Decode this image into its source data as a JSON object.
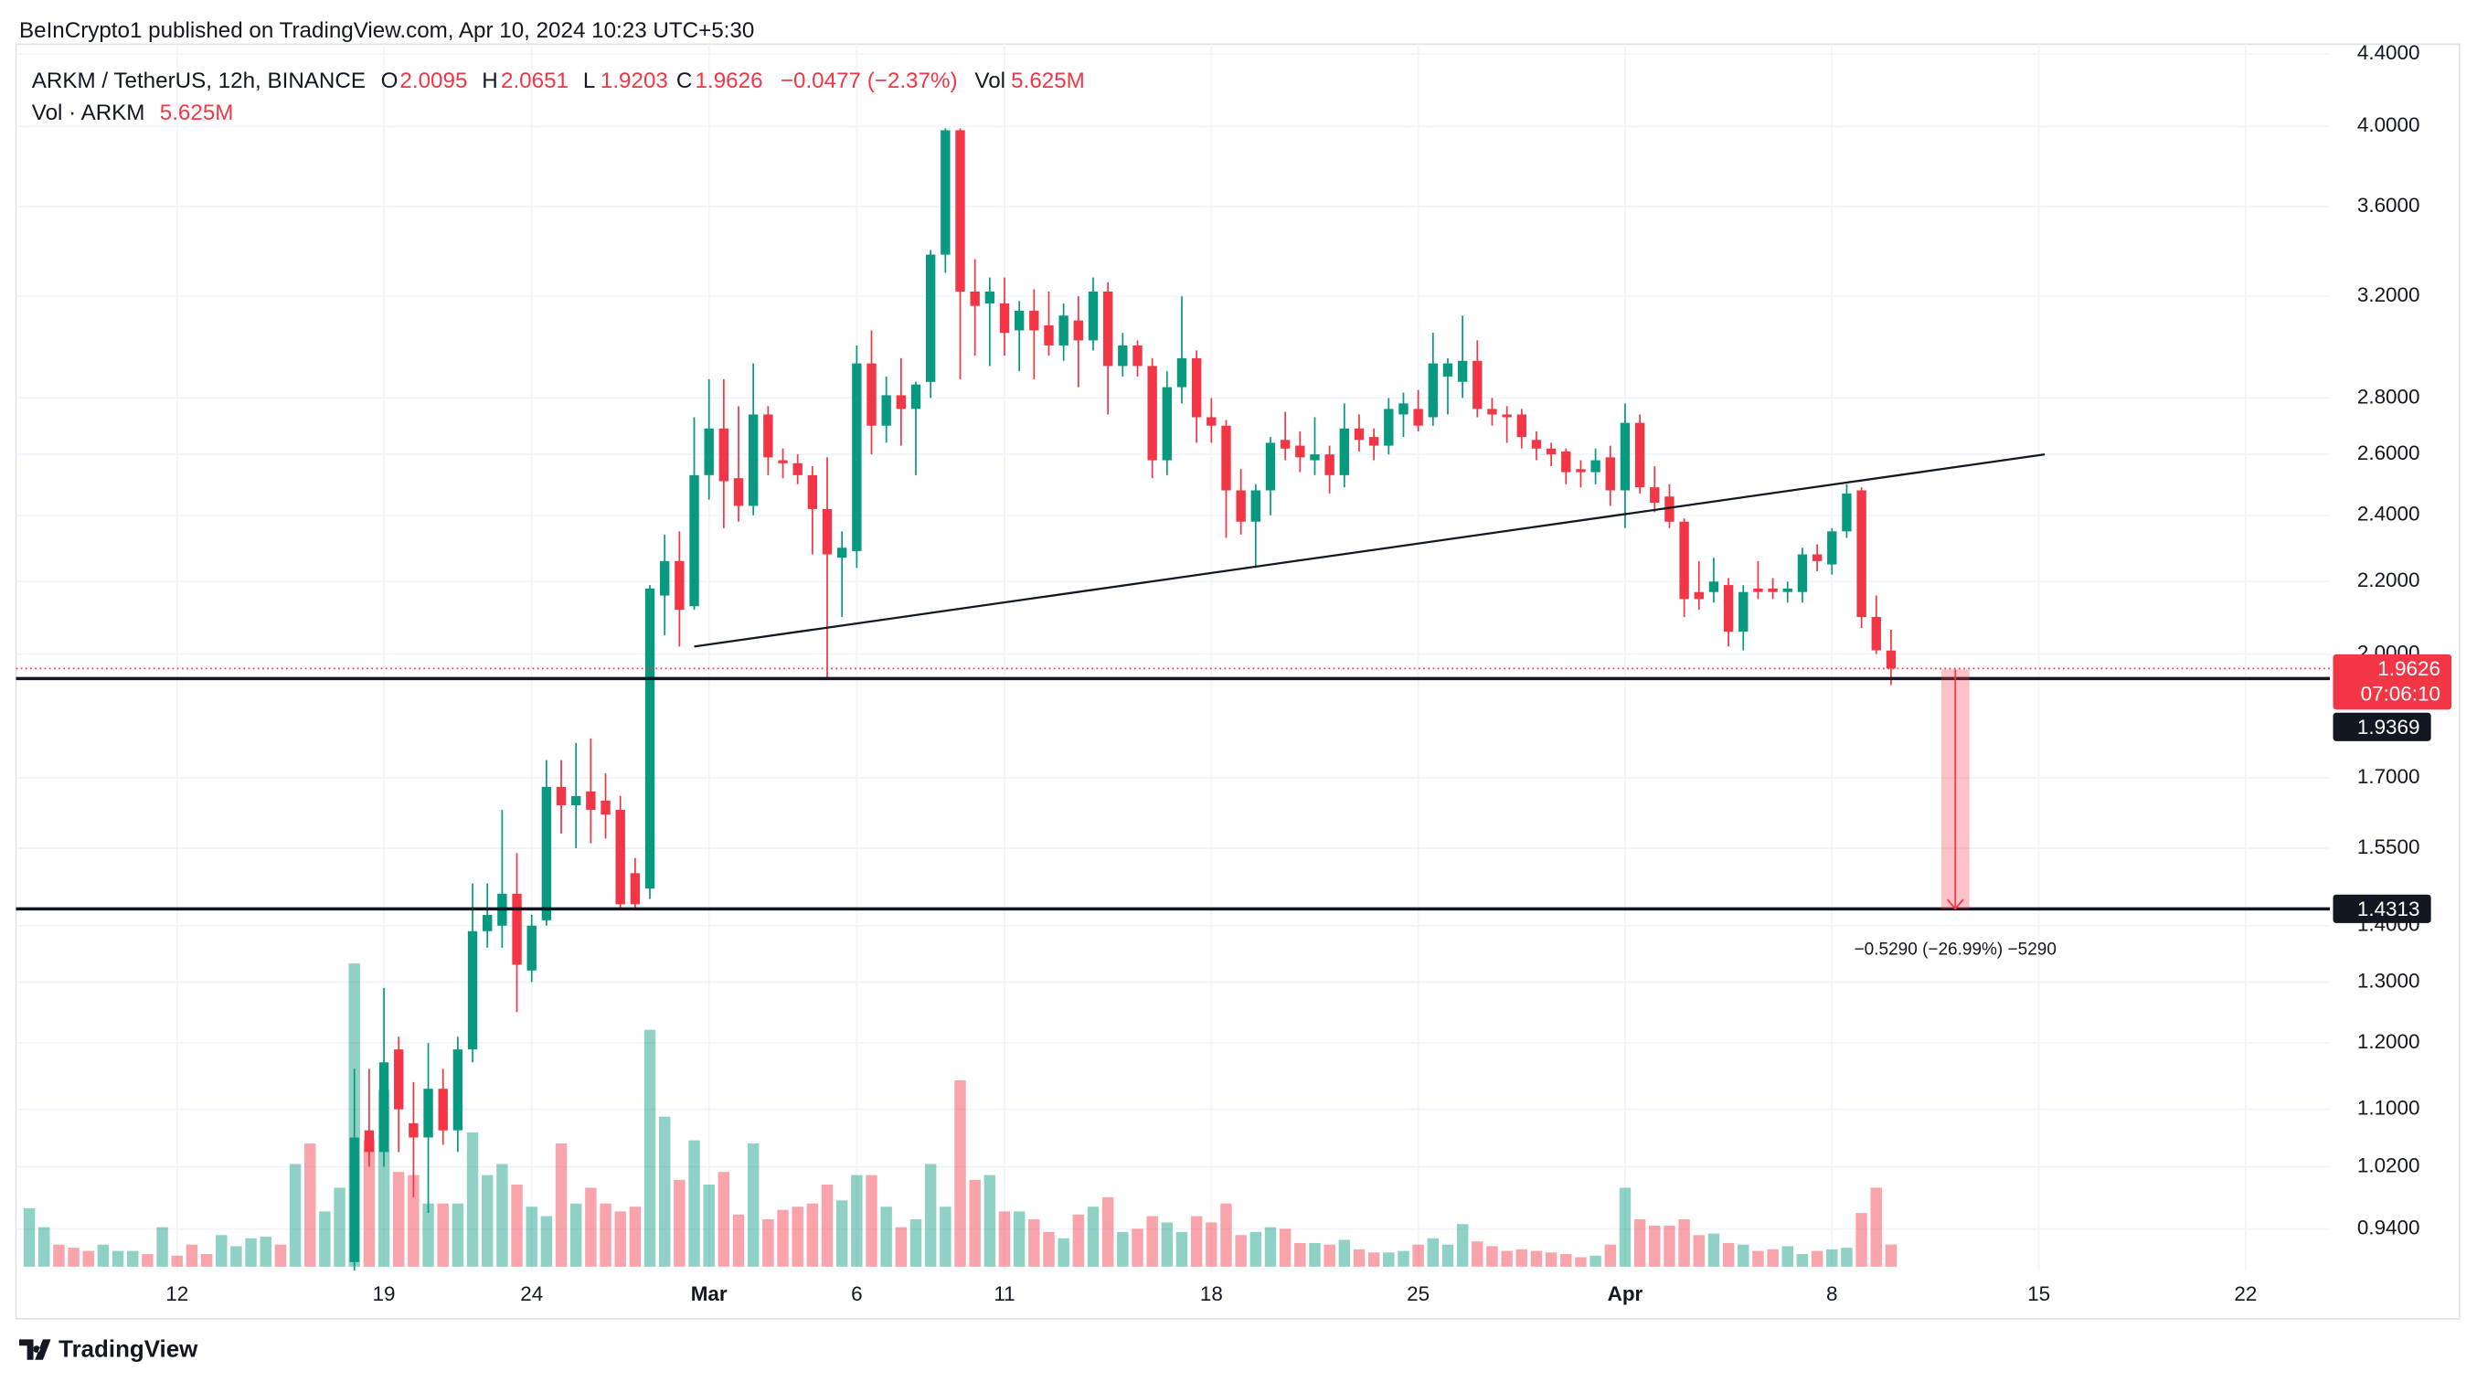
{
  "chart_data": {
    "type": "candlestick",
    "header": "BeInCrypto1 published on TradingView.com, Apr 10, 2024 10:23 UTC+5:30",
    "legend": {
      "symbol": "ARKM / TetherUS, 12h, BINANCE",
      "o": "O",
      "h": "H",
      "l": "L",
      "c": "C",
      "change": "−0.0477 (−2.37%)",
      "vol": "Vol",
      "volume": "5.625M",
      "indicator": "Vol · ARKM"
    },
    "footer": "TradingView",
    "countdown": "07:06:10",
    "log_scale": true,
    "grid": true,
    "up_color": "#089981",
    "down_color": "#f23645",
    "xlim": [
      -0.9,
      155.7
    ],
    "xticks": [
      {
        "value": 10,
        "label": "12"
      },
      {
        "value": 24,
        "label": "19"
      },
      {
        "value": 34,
        "label": "24"
      },
      {
        "value": 46,
        "label": "Mar"
      },
      {
        "value": 56,
        "label": "6"
      },
      {
        "value": 66,
        "label": "11"
      },
      {
        "value": 80,
        "label": "18"
      },
      {
        "value": 94,
        "label": "25"
      },
      {
        "value": 108,
        "label": "Apr"
      },
      {
        "value": 122,
        "label": "8"
      },
      {
        "value": 136,
        "label": "15"
      },
      {
        "value": 150,
        "label": "22"
      }
    ],
    "ylim": [
      0.889,
      4.456
    ],
    "yticks": [
      {
        "value": 4.4,
        "label": "4.4000"
      },
      {
        "value": 4.0,
        "label": "4.0000"
      },
      {
        "value": 3.6,
        "label": "3.6000"
      },
      {
        "value": 3.2,
        "label": "3.2000"
      },
      {
        "value": 2.8,
        "label": "2.8000"
      },
      {
        "value": 2.6,
        "label": "2.6000"
      },
      {
        "value": 2.4,
        "label": "2.4000"
      },
      {
        "value": 2.2,
        "label": "2.2000"
      },
      {
        "value": 2.0,
        "label": "2.0000"
      },
      {
        "value": 1.7,
        "label": "1.7000"
      },
      {
        "value": 1.55,
        "label": "1.5500"
      },
      {
        "value": 1.4,
        "label": "1.4000"
      },
      {
        "value": 1.3,
        "label": "1.3000"
      },
      {
        "value": 1.2,
        "label": "1.2000"
      },
      {
        "value": 1.1,
        "label": "1.1000"
      },
      {
        "value": 1.02,
        "label": "1.0200"
      },
      {
        "value": 0.94,
        "label": "0.9400"
      }
    ],
    "open": [
      null,
      null,
      null,
      null,
      null,
      null,
      null,
      null,
      null,
      null,
      null,
      null,
      null,
      null,
      null,
      null,
      null,
      null,
      null,
      null,
      null,
      null,
      0.9,
      1.07,
      1.04,
      1.19,
      1.08,
      1.06,
      1.13,
      1.07,
      1.19,
      1.39,
      1.4,
      1.46,
      1.32,
      1.41,
      1.68,
      1.64,
      1.67,
      1.65,
      1.63,
      1.5,
      1.47,
      2.16,
      2.26,
      2.13,
      2.53,
      2.69,
      2.52,
      2.43,
      2.74,
      2.58,
      2.57,
      2.53,
      2.42,
      2.27,
      2.29,
      2.93,
      2.7,
      2.81,
      2.76,
      2.86,
      3.38,
      3.98,
      3.22,
      3.17,
      3.17,
      3.06,
      3.14,
      3.08,
      3.0,
      3.1,
      3.02,
      3.22,
      2.92,
      3.0,
      2.92,
      2.58,
      2.84,
      2.95,
      2.73,
      2.7,
      2.48,
      2.38,
      2.48,
      2.65,
      2.63,
      2.58,
      2.6,
      2.53,
      2.69,
      2.66,
      2.63,
      2.74,
      2.76,
      2.73,
      2.88,
      2.86,
      2.94,
      2.76,
      2.74,
      2.74,
      2.65,
      2.62,
      2.61,
      2.55,
      2.54,
      2.59,
      2.48,
      2.71,
      2.49,
      2.46,
      2.38,
      2.17,
      2.17,
      2.19,
      2.06,
      2.18,
      2.18,
      2.17,
      2.17,
      2.28,
      2.25,
      2.35,
      2.48,
      2.1,
      2.0095
    ],
    "high": [
      null,
      null,
      null,
      null,
      null,
      null,
      null,
      null,
      null,
      null,
      null,
      null,
      null,
      null,
      null,
      null,
      null,
      null,
      null,
      null,
      null,
      null,
      1.16,
      1.16,
      1.29,
      1.21,
      1.14,
      1.2,
      1.16,
      1.21,
      1.48,
      1.48,
      1.63,
      1.54,
      1.42,
      1.74,
      1.74,
      1.78,
      1.79,
      1.71,
      1.66,
      1.53,
      2.19,
      2.34,
      2.35,
      2.73,
      2.87,
      2.87,
      2.77,
      2.93,
      2.77,
      2.62,
      2.6,
      2.56,
      2.59,
      2.35,
      3.0,
      3.06,
      2.88,
      2.95,
      2.86,
      3.4,
      3.99,
      3.99,
      3.36,
      3.28,
      3.28,
      3.18,
      3.23,
      3.22,
      3.17,
      3.2,
      3.28,
      3.26,
      3.05,
      3.02,
      2.95,
      2.9,
      3.2,
      2.98,
      2.8,
      2.72,
      2.55,
      2.5,
      2.66,
      2.75,
      2.68,
      2.73,
      2.63,
      2.78,
      2.74,
      2.69,
      2.8,
      2.82,
      2.83,
      3.05,
      2.95,
      3.12,
      3.02,
      2.8,
      2.77,
      2.76,
      2.68,
      2.64,
      2.62,
      2.58,
      2.62,
      2.63,
      2.78,
      2.74,
      2.56,
      2.5,
      2.39,
      2.26,
      2.27,
      2.21,
      2.19,
      2.26,
      2.21,
      2.2,
      2.3,
      2.31,
      2.36,
      2.5,
      2.49,
      2.16,
      2.0651
    ],
    "low": [
      null,
      null,
      null,
      null,
      null,
      null,
      null,
      null,
      null,
      null,
      null,
      null,
      null,
      null,
      null,
      null,
      null,
      null,
      null,
      null,
      null,
      null,
      0.89,
      1.02,
      1.02,
      1.04,
      0.98,
      0.96,
      1.05,
      1.04,
      1.17,
      1.36,
      1.36,
      1.25,
      1.3,
      1.4,
      1.58,
      1.55,
      1.56,
      1.57,
      1.43,
      1.43,
      1.45,
      2.05,
      2.02,
      2.12,
      2.45,
      2.36,
      2.38,
      2.4,
      2.53,
      2.52,
      2.5,
      2.28,
      1.935,
      2.1,
      2.24,
      2.6,
      2.64,
      2.63,
      2.53,
      2.8,
      3.3,
      2.87,
      2.96,
      2.92,
      2.96,
      2.9,
      2.87,
      2.96,
      2.94,
      2.84,
      2.98,
      2.74,
      2.88,
      2.88,
      2.52,
      2.53,
      2.78,
      2.64,
      2.64,
      2.33,
      2.34,
      2.24,
      2.4,
      2.58,
      2.54,
      2.53,
      2.47,
      2.49,
      2.61,
      2.58,
      2.6,
      2.66,
      2.68,
      2.7,
      2.74,
      2.8,
      2.73,
      2.7,
      2.64,
      2.62,
      2.58,
      2.56,
      2.5,
      2.49,
      2.5,
      2.43,
      2.36,
      2.47,
      2.41,
      2.36,
      2.1,
      2.12,
      2.14,
      2.02,
      2.01,
      2.15,
      2.15,
      2.14,
      2.14,
      2.23,
      2.22,
      2.33,
      2.07,
      2.0,
      1.9203
    ],
    "close": [
      null,
      null,
      null,
      null,
      null,
      null,
      null,
      null,
      null,
      null,
      null,
      null,
      null,
      null,
      null,
      null,
      null,
      null,
      null,
      null,
      null,
      null,
      1.06,
      1.04,
      1.17,
      1.1,
      1.06,
      1.13,
      1.07,
      1.19,
      1.39,
      1.42,
      1.46,
      1.33,
      1.4,
      1.68,
      1.64,
      1.66,
      1.63,
      1.62,
      1.44,
      1.44,
      2.18,
      2.26,
      2.12,
      2.53,
      2.69,
      2.51,
      2.43,
      2.74,
      2.59,
      2.57,
      2.53,
      2.42,
      2.28,
      2.3,
      2.93,
      2.7,
      2.81,
      2.76,
      2.85,
      3.38,
      3.98,
      3.22,
      3.16,
      3.22,
      3.05,
      3.14,
      3.06,
      3.0,
      3.12,
      3.02,
      3.22,
      2.92,
      3.0,
      2.92,
      2.58,
      2.84,
      2.95,
      2.73,
      2.7,
      2.48,
      2.38,
      2.48,
      2.64,
      2.62,
      2.59,
      2.6,
      2.53,
      2.69,
      2.65,
      2.63,
      2.76,
      2.78,
      2.7,
      2.93,
      2.93,
      2.94,
      2.76,
      2.74,
      2.73,
      2.66,
      2.62,
      2.6,
      2.54,
      2.54,
      2.58,
      2.48,
      2.71,
      2.49,
      2.44,
      2.38,
      2.15,
      2.15,
      2.2,
      2.06,
      2.17,
      2.17,
      2.17,
      2.18,
      2.28,
      2.26,
      2.35,
      2.47,
      2.1,
      2.01,
      1.9626
    ],
    "volume": [
      14.8,
      10,
      5.6,
      4.8,
      4,
      5.6,
      4,
      4,
      3.2,
      10,
      2.8,
      5.6,
      3.2,
      8,
      5.2,
      7.2,
      7.6,
      5.6,
      26,
      31.2,
      14,
      20,
      76.8,
      32,
      44.8,
      24,
      23.2,
      16,
      16,
      16,
      34,
      23.2,
      26,
      20.8,
      15.2,
      12.8,
      31.2,
      16,
      20,
      16,
      14,
      15.2,
      60,
      38,
      22,
      32,
      20.8,
      24,
      13.2,
      31.2,
      12,
      14.4,
      15.2,
      16,
      20.8,
      16.8,
      23.2,
      23.2,
      15.2,
      10,
      12,
      26,
      15.2,
      47.2,
      22,
      23.2,
      14,
      14,
      12,
      8.8,
      7.2,
      13.2,
      15.2,
      17.6,
      8.8,
      9.6,
      12.8,
      11.2,
      8.8,
      12.8,
      11.2,
      16,
      8,
      8.8,
      10,
      9.6,
      6,
      6,
      5.6,
      6.8,
      4.4,
      3.6,
      3.6,
      4,
      5.6,
      7.2,
      5.6,
      10.8,
      6.4,
      5.2,
      4,
      4.4,
      4,
      3.6,
      3.2,
      2.4,
      2.8,
      5.6,
      20,
      12,
      10.4,
      10.4,
      12,
      8,
      8.4,
      6,
      5.6,
      4,
      4.4,
      5.2,
      3.2,
      4,
      4.4,
      4.8,
      13.6,
      20,
      5.625
    ],
    "volume_colors": [
      "#089981",
      "#089981",
      "#f23645",
      "#f23645",
      "#f23645",
      "#089981",
      "#089981",
      "#089981",
      "#f23645",
      "#089981",
      "#f23645",
      "#f23645",
      "#f23645",
      "#089981",
      "#089981",
      "#089981",
      "#089981",
      "#f23645",
      "#089981",
      "#f23645",
      "#089981",
      "#089981",
      "#089981",
      "#f23645",
      "#089981",
      "#f23645",
      "#f23645",
      "#089981",
      "#f23645",
      "#089981",
      "#089981",
      "#089981",
      "#089981",
      "#f23645",
      "#089981",
      "#089981",
      "#f23645",
      "#089981",
      "#f23645",
      "#f23645",
      "#f23645",
      "#f23645",
      "#089981",
      "#089981",
      "#f23645",
      "#089981",
      "#089981",
      "#f23645",
      "#f23645",
      "#089981",
      "#f23645",
      "#f23645",
      "#f23645",
      "#f23645",
      "#f23645",
      "#089981",
      "#089981",
      "#f23645",
      "#089981",
      "#f23645",
      "#089981",
      "#089981",
      "#089981",
      "#f23645",
      "#f23645",
      "#089981",
      "#f23645",
      "#089981",
      "#f23645",
      "#f23645",
      "#089981",
      "#f23645",
      "#089981",
      "#f23645",
      "#089981",
      "#f23645",
      "#f23645",
      "#089981",
      "#089981",
      "#f23645",
      "#f23645",
      "#f23645",
      "#f23645",
      "#089981",
      "#089981",
      "#f23645",
      "#f23645",
      "#089981",
      "#f23645",
      "#089981",
      "#f23645",
      "#f23645",
      "#089981",
      "#089981",
      "#f23645",
      "#089981",
      "#089981",
      "#089981",
      "#f23645",
      "#f23645",
      "#f23645",
      "#f23645",
      "#f23645",
      "#f23645",
      "#f23645",
      "#f23645",
      "#089981",
      "#f23645",
      "#089981",
      "#f23645",
      "#f23645",
      "#f23645",
      "#f23645",
      "#f23645",
      "#089981",
      "#f23645",
      "#089981",
      "#f23645",
      "#f23645",
      "#089981",
      "#089981",
      "#f23645",
      "#089981",
      "#089981",
      "#f23645",
      "#f23645",
      "#f23645"
    ],
    "levels": [
      1.9369,
      1.4313
    ],
    "trendline": {
      "from": [
        45,
        2.02
      ],
      "to": [
        136.4,
        2.6
      ]
    },
    "measure": {
      "from": 1.9603,
      "to": 1.4313,
      "x": [
        129.4,
        131.3
      ],
      "label": "−0.5290 (−26.99%) −5290"
    }
  }
}
